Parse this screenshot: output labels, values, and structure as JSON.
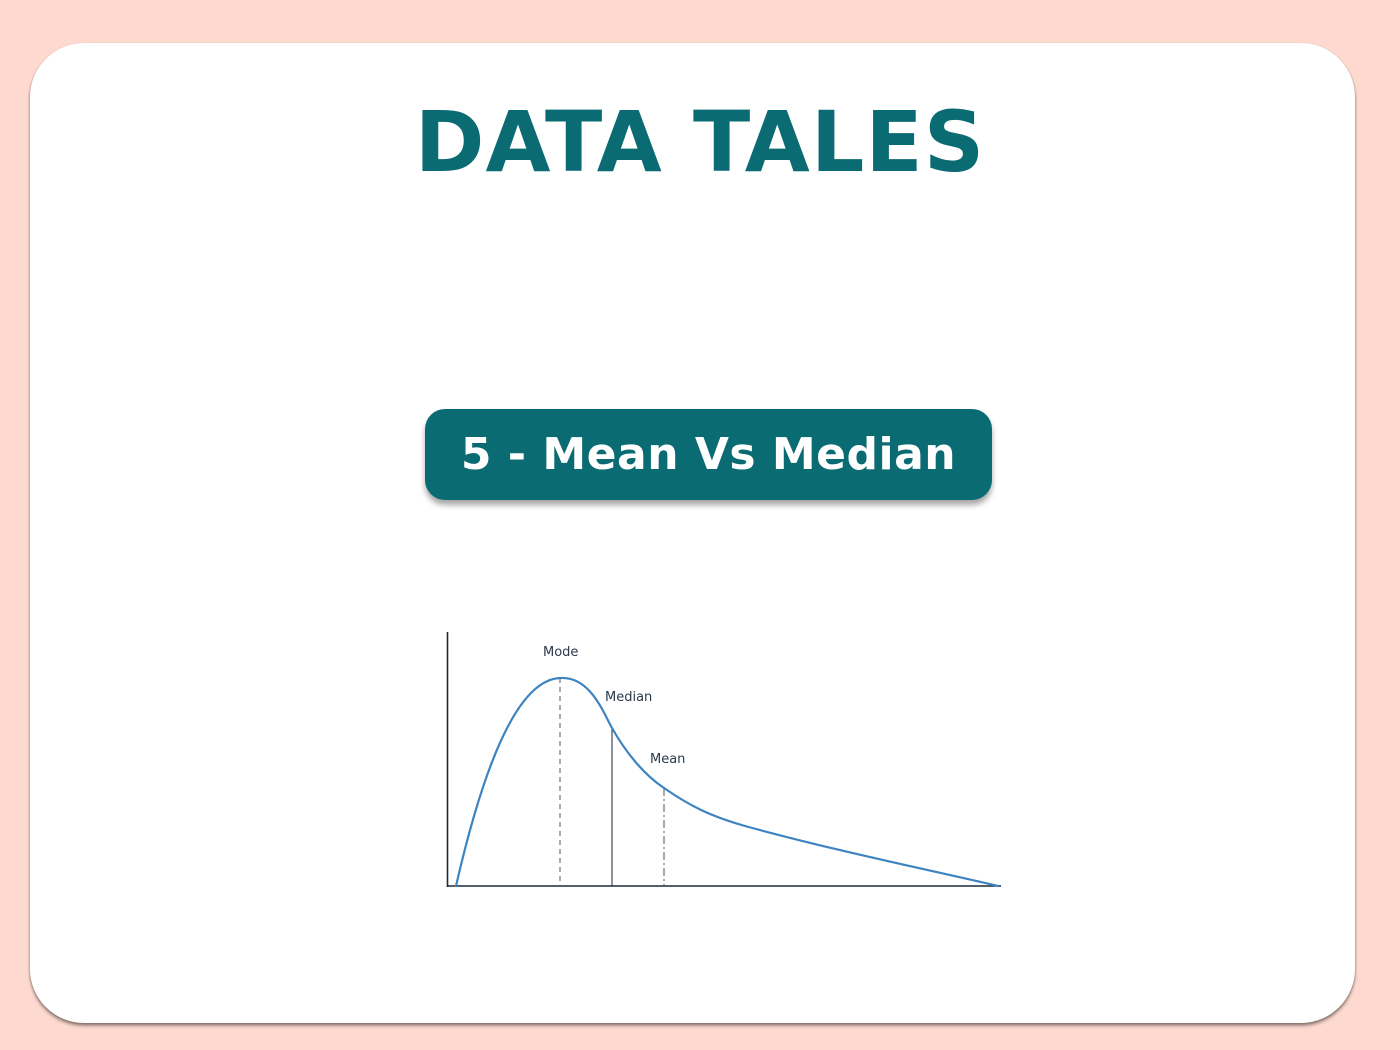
{
  "heading": "DATA TALES",
  "badge_label": "5 - Mean Vs Median",
  "diagram": {
    "labels": {
      "mode": "Mode",
      "median": "Median",
      "mean": "Mean"
    },
    "colors": {
      "curve": "#3d84c0",
      "axes": "#1d2a3a",
      "markers": "#555555"
    }
  },
  "colors": {
    "background": "#fdd9cf",
    "accent": "#0b6b72",
    "card": "#ffffff"
  }
}
